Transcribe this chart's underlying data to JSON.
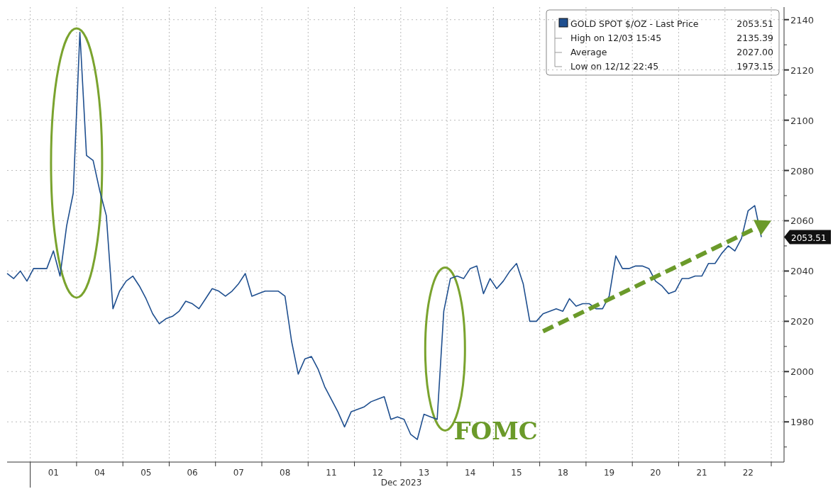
{
  "chart_data": {
    "type": "line",
    "xlabel": "Dec 2023",
    "legend": "top right",
    "grid": true,
    "marker": "none",
    "line_style": "solid",
    "categories": [
      null,
      null,
      null,
      null,
      null,
      null,
      null,
      "01",
      null,
      null,
      null,
      null,
      null,
      null,
      "04",
      null,
      null,
      null,
      null,
      null,
      null,
      "05",
      null,
      null,
      null,
      null,
      null,
      null,
      "06",
      null,
      null,
      null,
      null,
      null,
      null,
      "07",
      null,
      null,
      null,
      null,
      null,
      null,
      "08",
      null,
      null,
      null,
      null,
      null,
      null,
      "11",
      null,
      null,
      null,
      null,
      null,
      null,
      "12",
      null,
      null,
      null,
      null,
      null,
      null,
      "13",
      null,
      null,
      null,
      null,
      null,
      null,
      "14",
      null,
      null,
      null,
      null,
      null,
      null,
      "15",
      null,
      null,
      null,
      null,
      null,
      null,
      "18",
      null,
      null,
      null,
      null,
      null,
      null,
      "19",
      null,
      null,
      null,
      null,
      null,
      null,
      "20",
      null,
      null,
      null,
      null,
      null,
      null,
      "21",
      null,
      null,
      null,
      null,
      null,
      null,
      "22",
      null,
      null,
      null,
      null,
      null
    ],
    "ylim": [
      1964,
      2145
    ],
    "yticks": [
      {
        "value": 1970,
        "label": null
      },
      1980,
      {
        "value": 1990,
        "label": null
      },
      2000,
      {
        "value": 2010,
        "label": null
      },
      2020,
      {
        "value": 2030,
        "label": null
      },
      2040,
      {
        "value": 2050,
        "label": null
      },
      2060,
      {
        "value": 2070,
        "label": null
      },
      2080,
      {
        "value": 2090,
        "label": null
      },
      2100,
      {
        "value": 2110,
        "label": null
      },
      2120,
      {
        "value": 2130,
        "label": null
      },
      2140
    ],
    "series": [
      {
        "name": "GOLD SPOT $/OZ - Last Price",
        "color": "#1f4f8f",
        "values": [
          2039,
          2037,
          2040,
          2036,
          2041,
          2041,
          2041,
          2048,
          2038,
          2058,
          2071,
          2135,
          2086,
          2084,
          2072,
          2062,
          2025,
          2032,
          2036,
          2038,
          2034,
          2029,
          2023,
          2019,
          2021,
          2022,
          2024,
          2028,
          2027,
          2025,
          2029,
          2033,
          2032,
          2030,
          2032,
          2035,
          2039,
          2030,
          2031,
          2032,
          2032,
          2032,
          2030,
          2012,
          1999,
          2005,
          2006,
          2001,
          1994,
          1989,
          1984,
          1978,
          1984,
          1985,
          1986,
          1988,
          1989,
          1990,
          1981,
          1982,
          1981,
          1975,
          1973,
          1983,
          1982,
          1981,
          2024,
          2037,
          2038,
          2037,
          2041,
          2042,
          2031,
          2037,
          2033,
          2036,
          2040,
          2043,
          2035,
          2020,
          2020,
          2023,
          2024,
          2025,
          2024,
          2029,
          2026,
          2027,
          2027,
          2025,
          2025,
          2030,
          2046,
          2041,
          2041,
          2042,
          2042,
          2041,
          2036,
          2034,
          2031,
          2032,
          2037,
          2037,
          2038,
          2038,
          2043,
          2043,
          2047,
          2050,
          2048,
          2053,
          2064,
          2066,
          2053.51,
          null,
          null,
          null
        ]
      }
    ],
    "annotations": [
      "2053.51",
      "High on 12/03 15:45",
      "2135.39",
      "Average",
      "2027.00",
      "Low on 12/12 22:45",
      "1973.15",
      "FOMC",
      "2053.51"
    ]
  }
}
